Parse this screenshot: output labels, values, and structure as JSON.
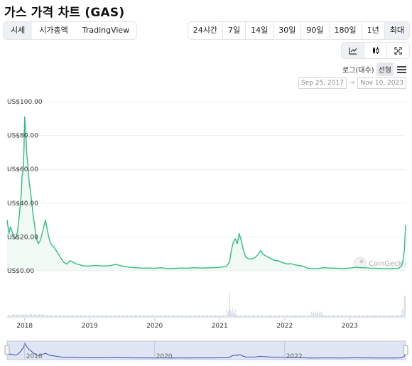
{
  "title": "가스 가격 차트 (GAS)",
  "tabs": [
    "시세",
    "시가총액",
    "TradingView"
  ],
  "ranges": [
    "24시간",
    "7일",
    "14일",
    "30일",
    "90일",
    "180일",
    "1년",
    "최대"
  ],
  "view_buttons": [
    "line-chart-icon",
    "candlestick-icon",
    "fullscreen-icon"
  ],
  "scale": {
    "log": "로그(대수)",
    "linear": "선형"
  },
  "date_range": {
    "from": "Sep 25, 2017",
    "to": "Nov 10, 2023"
  },
  "watermark": "CoinGecko",
  "colors": {
    "line": "#2fbf7e",
    "volume": "#c9d3e2",
    "navigator": "#3b4bb8"
  },
  "chart_data": {
    "type": "line",
    "y_ticks": [
      "US$0.00",
      "US$20.00",
      "US$40.00",
      "US$60.00",
      "US$80.00",
      "US$100.00"
    ],
    "ylim": [
      0,
      100
    ],
    "x_ticks": [
      "2018",
      "2019",
      "2020",
      "2021",
      "2022",
      "2023"
    ],
    "navigator_ticks": [
      "2018",
      "2020",
      "2022"
    ],
    "xlim": [
      2017.73,
      2023.86
    ],
    "series": [
      {
        "values": [
          [
            2017.73,
            30
          ],
          [
            2017.76,
            22
          ],
          [
            2017.78,
            26
          ],
          [
            2017.8,
            24
          ],
          [
            2017.83,
            20
          ],
          [
            2017.86,
            19
          ],
          [
            2017.89,
            23
          ],
          [
            2017.91,
            30
          ],
          [
            2017.93,
            38
          ],
          [
            2017.95,
            46
          ],
          [
            2017.96,
            56
          ],
          [
            2017.97,
            58
          ],
          [
            2017.98,
            61
          ],
          [
            2017.99,
            73
          ],
          [
            2018.0,
            91
          ],
          [
            2018.01,
            86
          ],
          [
            2018.02,
            80
          ],
          [
            2018.03,
            70
          ],
          [
            2018.05,
            62
          ],
          [
            2018.07,
            52
          ],
          [
            2018.09,
            47
          ],
          [
            2018.11,
            40
          ],
          [
            2018.13,
            33
          ],
          [
            2018.15,
            28
          ],
          [
            2018.17,
            22
          ],
          [
            2018.19,
            18
          ],
          [
            2018.21,
            16
          ],
          [
            2018.24,
            18
          ],
          [
            2018.27,
            22
          ],
          [
            2018.3,
            27
          ],
          [
            2018.32,
            30
          ],
          [
            2018.34,
            26
          ],
          [
            2018.37,
            20
          ],
          [
            2018.4,
            16
          ],
          [
            2018.45,
            14
          ],
          [
            2018.5,
            11
          ],
          [
            2018.55,
            8
          ],
          [
            2018.6,
            5
          ],
          [
            2018.65,
            4
          ],
          [
            2018.7,
            6
          ],
          [
            2018.75,
            5
          ],
          [
            2018.8,
            4
          ],
          [
            2018.85,
            3.5
          ],
          [
            2018.9,
            3
          ],
          [
            2018.95,
            2.8
          ],
          [
            2019.0,
            2.8
          ],
          [
            2019.1,
            3.2
          ],
          [
            2019.2,
            2.8
          ],
          [
            2019.3,
            3
          ],
          [
            2019.4,
            3.8
          ],
          [
            2019.5,
            2.8
          ],
          [
            2019.6,
            2.2
          ],
          [
            2019.7,
            1.8
          ],
          [
            2019.8,
            1.6
          ],
          [
            2019.9,
            1.6
          ],
          [
            2020.0,
            1.5
          ],
          [
            2020.1,
            1.8
          ],
          [
            2020.2,
            1.2
          ],
          [
            2020.3,
            1.4
          ],
          [
            2020.4,
            1.6
          ],
          [
            2020.5,
            1.5
          ],
          [
            2020.6,
            1.8
          ],
          [
            2020.7,
            1.6
          ],
          [
            2020.8,
            1.7
          ],
          [
            2020.9,
            1.8
          ],
          [
            2021.0,
            2.0
          ],
          [
            2021.1,
            2.5
          ],
          [
            2021.15,
            5
          ],
          [
            2021.18,
            12
          ],
          [
            2021.21,
            17
          ],
          [
            2021.24,
            19
          ],
          [
            2021.27,
            16
          ],
          [
            2021.3,
            22
          ],
          [
            2021.33,
            18
          ],
          [
            2021.36,
            13
          ],
          [
            2021.4,
            8
          ],
          [
            2021.45,
            7
          ],
          [
            2021.5,
            7
          ],
          [
            2021.55,
            8
          ],
          [
            2021.6,
            10
          ],
          [
            2021.63,
            12
          ],
          [
            2021.66,
            10
          ],
          [
            2021.7,
            9
          ],
          [
            2021.75,
            8
          ],
          [
            2021.8,
            7
          ],
          [
            2021.85,
            6
          ],
          [
            2021.9,
            6
          ],
          [
            2021.95,
            5
          ],
          [
            2022.0,
            4.5
          ],
          [
            2022.05,
            4
          ],
          [
            2022.1,
            4.2
          ],
          [
            2022.15,
            3.6
          ],
          [
            2022.2,
            3.2
          ],
          [
            2022.25,
            3
          ],
          [
            2022.3,
            2.5
          ],
          [
            2022.35,
            1.5
          ],
          [
            2022.4,
            1.2
          ],
          [
            2022.5,
            1.3
          ],
          [
            2022.6,
            1.8
          ],
          [
            2022.7,
            1.6
          ],
          [
            2022.8,
            1.5
          ],
          [
            2022.9,
            1.3
          ],
          [
            2023.0,
            1.6
          ],
          [
            2023.1,
            2.0
          ],
          [
            2023.2,
            1.8
          ],
          [
            2023.3,
            1.6
          ],
          [
            2023.4,
            1.5
          ],
          [
            2023.5,
            1.3
          ],
          [
            2023.6,
            1.2
          ],
          [
            2023.7,
            1.4
          ],
          [
            2023.76,
            1.6
          ],
          [
            2023.8,
            3
          ],
          [
            2023.82,
            6
          ],
          [
            2023.84,
            12
          ],
          [
            2023.86,
            27
          ]
        ]
      }
    ],
    "volume_note": "thin bars below price line"
  }
}
